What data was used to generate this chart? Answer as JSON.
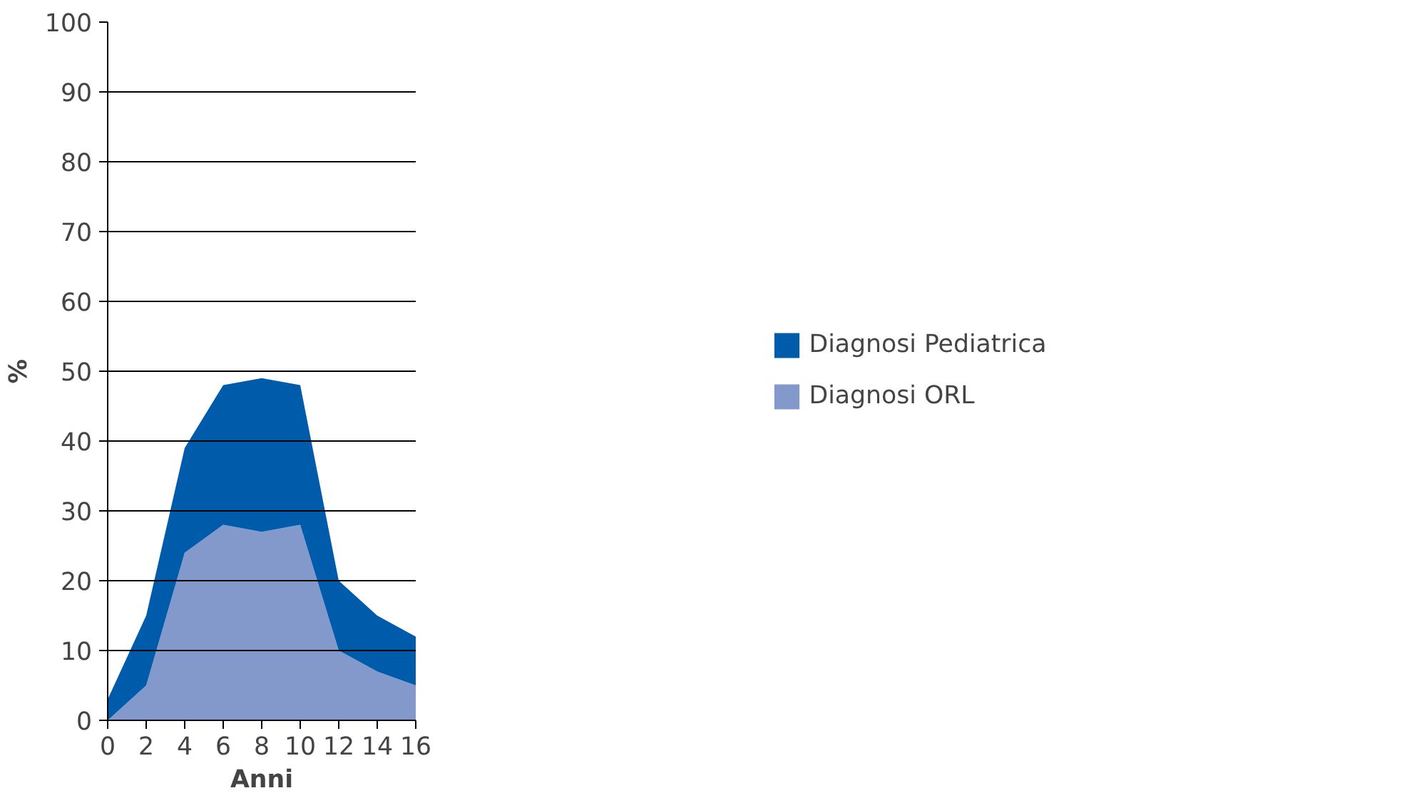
{
  "chart_data": {
    "type": "area",
    "stacked": true,
    "xlabel": "Anni",
    "ylabel": "%",
    "x": [
      0,
      2,
      4,
      6,
      8,
      10,
      12,
      14,
      16
    ],
    "series": [
      {
        "name": "Diagnosi ORL",
        "color": "#8399cc",
        "values": [
          0,
          5,
          24,
          28,
          27,
          28,
          10,
          7,
          5
        ]
      },
      {
        "name": "Diagnosi Pediatrica",
        "color": "#005bab",
        "values": [
          3,
          10,
          15,
          20,
          22,
          20,
          10,
          8,
          7
        ]
      }
    ],
    "xlim": [
      0,
      16
    ],
    "xticks": [
      0,
      2,
      4,
      6,
      8,
      10,
      12,
      14,
      16
    ],
    "ylim": [
      0,
      100
    ],
    "yticks": [
      0,
      10,
      20,
      30,
      40,
      50,
      60,
      70,
      80,
      90,
      100
    ],
    "grid": "y",
    "legend": "right"
  }
}
